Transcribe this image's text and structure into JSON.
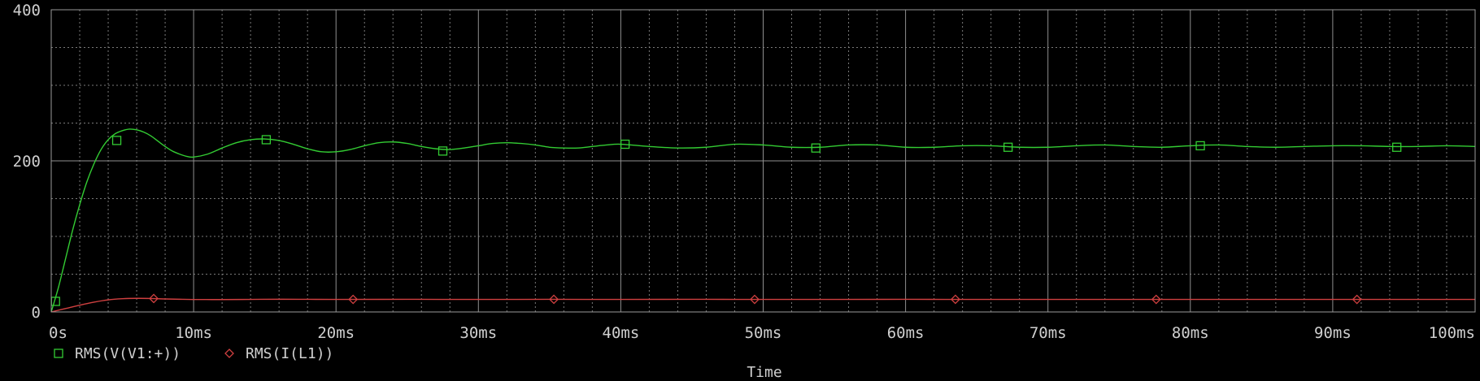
{
  "chart_data": {
    "type": "line",
    "xlabel": "Time",
    "ylabel": "",
    "xlim": [
      0,
      100
    ],
    "ylim": [
      0,
      400
    ],
    "x_ticks": [
      0,
      10,
      20,
      30,
      40,
      50,
      60,
      70,
      80,
      90,
      100
    ],
    "x_tick_labels": [
      "0s",
      "10ms",
      "20ms",
      "30ms",
      "40ms",
      "50ms",
      "60ms",
      "70ms",
      "80ms",
      "90ms",
      "100ms"
    ],
    "y_ticks": [
      0,
      200,
      400
    ],
    "y_tick_labels": [
      "0",
      "200",
      "400"
    ],
    "grid": true,
    "legend_position": "bottom-left",
    "series": [
      {
        "name": "RMS(V(V1:+))",
        "color": "#33cc33",
        "marker": "square",
        "x": [
          0,
          0.5,
          1,
          1.5,
          2,
          2.5,
          3,
          3.5,
          4,
          4.5,
          5,
          5.5,
          6,
          6.5,
          7,
          7.5,
          8,
          8.5,
          9,
          9.5,
          10,
          11,
          12,
          13,
          14,
          15,
          16,
          17,
          18,
          19,
          20,
          21,
          22,
          23,
          24,
          25,
          26,
          27,
          28,
          29,
          30,
          31,
          32,
          33,
          34,
          35,
          36,
          37,
          38,
          39,
          40,
          42,
          44,
          46,
          48,
          50,
          52,
          54,
          56,
          58,
          60,
          62,
          64,
          66,
          68,
          70,
          72,
          74,
          76,
          78,
          80,
          82,
          84,
          86,
          88,
          90,
          92,
          94,
          96,
          98,
          100
        ],
        "values": [
          0,
          32,
          70,
          108,
          142,
          172,
          196,
          215,
          228,
          236,
          240,
          242,
          241,
          238,
          233,
          226,
          219,
          213,
          209,
          206,
          205,
          209,
          217,
          224,
          228,
          229,
          227,
          222,
          216,
          212,
          212,
          215,
          220,
          224,
          225,
          223,
          219,
          216,
          215,
          217,
          220,
          223,
          224,
          223,
          221,
          218,
          217,
          217,
          219,
          221,
          222,
          219,
          217,
          218,
          222,
          221,
          218,
          218,
          221,
          221,
          218,
          218,
          220,
          220,
          218,
          218,
          220,
          221,
          219,
          218,
          220,
          221,
          219,
          218,
          219,
          220,
          220,
          219,
          219,
          220,
          219
        ],
        "marker_points": [
          [
            0.3,
            14
          ],
          [
            4.6,
            227
          ],
          [
            15.1,
            228
          ],
          [
            27.5,
            213
          ],
          [
            40.3,
            222
          ],
          [
            53.7,
            217
          ],
          [
            67.2,
            218
          ],
          [
            80.7,
            220
          ],
          [
            94.5,
            218
          ]
        ]
      },
      {
        "name": "RMS(I(L1))",
        "color": "#d04040",
        "marker": "diamond",
        "x": [
          0,
          1,
          2,
          3,
          4,
          5,
          6,
          7,
          8,
          9,
          10,
          12,
          14,
          16,
          18,
          20,
          25,
          30,
          35,
          40,
          45,
          50,
          55,
          60,
          65,
          70,
          75,
          80,
          85,
          90,
          95,
          100
        ],
        "values": [
          0,
          4.5,
          9,
          13,
          16,
          17.5,
          18,
          17.8,
          17.2,
          16.8,
          16.5,
          16.4,
          16.6,
          16.8,
          16.7,
          16.6,
          16.7,
          16.6,
          16.7,
          16.6,
          16.7,
          16.6,
          16.6,
          16.7,
          16.6,
          16.6,
          16.6,
          16.6,
          16.6,
          16.6,
          16.6,
          16.6
        ],
        "marker_points": [
          [
            7.2,
            17.8
          ],
          [
            21.2,
            16.6
          ],
          [
            35.3,
            16.7
          ],
          [
            49.4,
            16.6
          ],
          [
            63.5,
            16.7
          ],
          [
            77.6,
            16.6
          ],
          [
            91.7,
            16.6
          ]
        ]
      }
    ]
  }
}
